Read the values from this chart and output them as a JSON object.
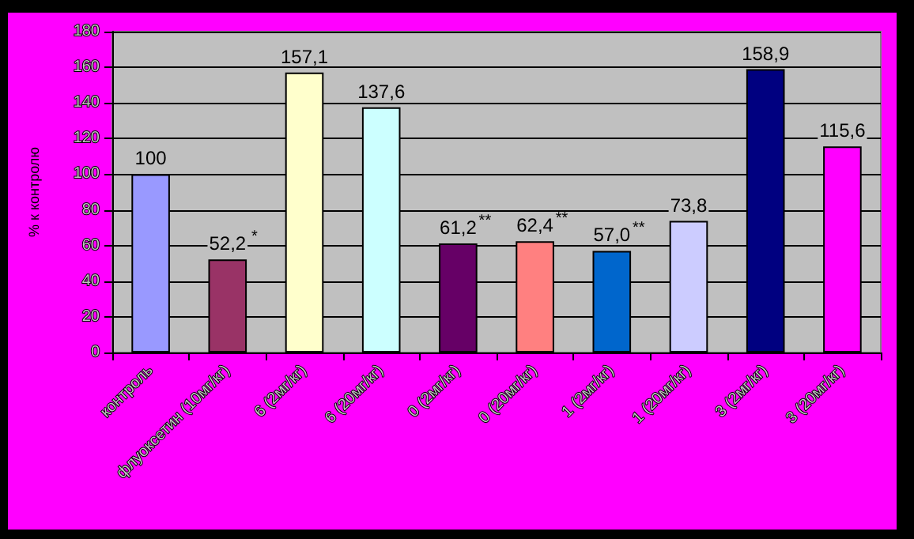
{
  "chart_data": {
    "type": "bar",
    "ylabel": "% к контролю",
    "categories": [
      "контроль",
      "флуоксетин (10мг/кг)",
      "6 (2мг/кг)",
      "6 (20мг/кг)",
      "0 (2мг/кг)",
      "0 (20мг/кг)",
      "1 (2мг/кг)",
      "1 (20мг/кг)",
      "3 (2мг/кг)",
      "3 (20мг/кг)"
    ],
    "values": [
      100,
      52.2,
      157.1,
      137.6,
      61.2,
      62.4,
      57.0,
      73.8,
      158.9,
      115.6
    ],
    "value_labels": [
      "100",
      "52,2",
      "157,1",
      "137,6",
      "61,2",
      "62,4",
      "57,0",
      "73,8",
      "158,9",
      "115,6"
    ],
    "colors": [
      "#9999ff",
      "#993366",
      "#ffffcc",
      "#ccffff",
      "#660066",
      "#ff8080",
      "#0066cc",
      "#ccccff",
      "#000080",
      "#ff00ff"
    ],
    "annotations": [
      {
        "text": "*",
        "x": "флуоксетин (10мг/кг)",
        "y": 52.2
      },
      {
        "text": "**",
        "x": "0 (2мг/кг)",
        "y": 61.2
      },
      {
        "text": "**",
        "x": "0 (20мг/кг)",
        "y": 62.4
      },
      {
        "text": "**",
        "x": "1 (2мг/кг)",
        "y": 57.0
      }
    ],
    "ylim": [
      0,
      180
    ],
    "yticks": [
      0,
      20,
      40,
      60,
      80,
      100,
      120,
      140,
      160,
      180
    ],
    "grid": "y"
  }
}
